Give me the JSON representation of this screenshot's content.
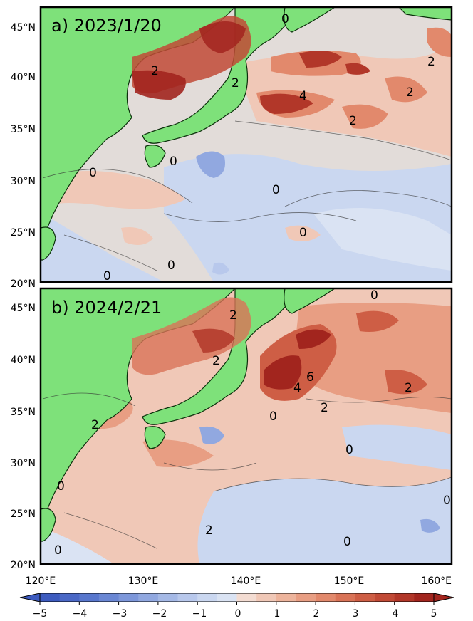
{
  "panels": [
    {
      "title": "a) 2023/1/20",
      "lat_ticks": [
        "45°N",
        "40°N",
        "35°N",
        "30°N",
        "25°N",
        "20°N"
      ],
      "contour_labels": [
        "0",
        "2",
        "2",
        "2",
        "2",
        "2",
        "4",
        "0",
        "0",
        "0",
        "0",
        "0",
        "0"
      ]
    },
    {
      "title": "b) 2024/2/21",
      "lat_ticks": [
        "45°N",
        "40°N",
        "35°N",
        "30°N",
        "25°N",
        "20°N"
      ],
      "contour_labels": [
        "0",
        "2",
        "2",
        "2",
        "2",
        "2",
        "4",
        "6",
        "0",
        "0",
        "0",
        "0",
        "2",
        "0",
        "0"
      ]
    }
  ],
  "lon_ticks": [
    "120°E",
    "130°E",
    "140°E",
    "150°E",
    "160°E"
  ],
  "extent": {
    "lon": [
      120,
      160
    ],
    "lat": [
      20,
      47
    ]
  },
  "colorbar": {
    "ticks": [
      "−5",
      "−4",
      "−3",
      "−2",
      "−1",
      "0",
      "1",
      "2",
      "3",
      "4",
      "5"
    ],
    "levels": [
      -5,
      -4.5,
      -4,
      -3.5,
      -3,
      -2.5,
      -2,
      -1.5,
      -1,
      -0.5,
      0,
      0.5,
      1,
      1.5,
      2,
      2.5,
      3,
      3.5,
      4,
      4.5,
      5
    ],
    "colors": [
      "#3d5bbf",
      "#4a68c6",
      "#5877cd",
      "#6a87d4",
      "#7d97da",
      "#91a8e0",
      "#a5b9e6",
      "#b8c8ec",
      "#cad7f0",
      "#dae3f3",
      "#f3dcd2",
      "#f0c8b7",
      "#edb49c",
      "#e89e83",
      "#e2896c",
      "#d97357",
      "#ce5e45",
      "#c14a36",
      "#b23729",
      "#a2251e"
    ],
    "extend": "both"
  },
  "colors": {
    "land": "#7ee17a",
    "ocean_base": "#e2dcd9"
  }
}
